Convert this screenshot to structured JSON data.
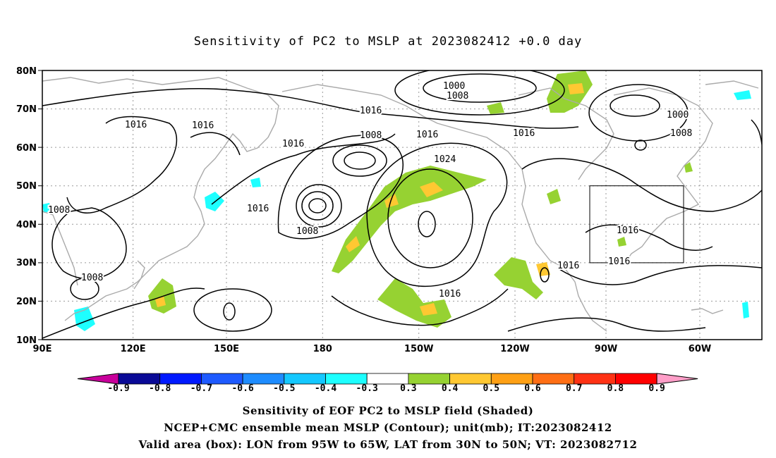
{
  "title": "Sensitivity of PC2 to MSLP at 2023082412 +0.0 day",
  "map": {
    "lat_ticks": [
      "80N",
      "70N",
      "60N",
      "50N",
      "40N",
      "30N",
      "20N",
      "10N"
    ],
    "lon_ticks": [
      "90E",
      "120E",
      "150E",
      "180",
      "150W",
      "120W",
      "90W",
      "60W"
    ],
    "contour_labels": [
      "1000",
      "1008",
      "1016",
      "1016",
      "1016",
      "1008",
      "1016",
      "1016",
      "1024",
      "1000",
      "1008",
      "1008",
      "1016",
      "1008",
      "1008",
      "1016",
      "1016",
      "1016",
      "1016"
    ],
    "valid_box": {
      "lon_range": [
        "95W",
        "65W"
      ],
      "lat_range": [
        "30N",
        "50N"
      ]
    }
  },
  "colorbar": {
    "labels": [
      "-0.9",
      "-0.8",
      "-0.7",
      "-0.6",
      "-0.5",
      "-0.4",
      "-0.3",
      "0.3",
      "0.4",
      "0.5",
      "0.6",
      "0.7",
      "0.8",
      "0.9"
    ],
    "colors": [
      "#0a0a96",
      "#0019ff",
      "#1e5aff",
      "#1e8cff",
      "#14c8ff",
      "#1effff",
      "#ffffff",
      "#96d232",
      "#ffc832",
      "#ffa014",
      "#ff6e14",
      "#ff3214",
      "#ff0000"
    ],
    "low_arrow_color": "#c8009b",
    "high_arrow_color": "#ff9ec8"
  },
  "captions": {
    "line1": "Sensitivity of EOF PC2 to MSLP field (Shaded)",
    "line2": "NCEP+CMC ensemble mean MSLP (Contour); unit(mb); IT:2023082412",
    "line3": "Valid area (box): LON from 95W to 65W, LAT from 30N to 50N; VT: 2023082712"
  }
}
